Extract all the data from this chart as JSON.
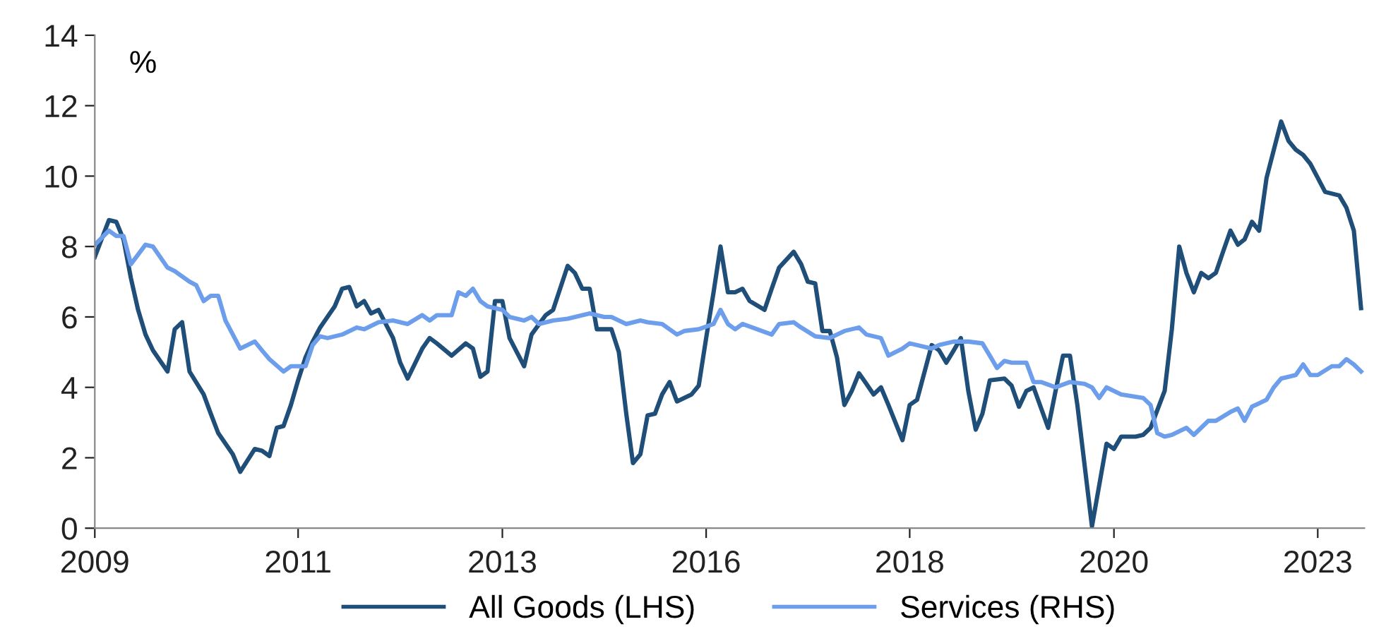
{
  "chart_data": {
    "type": "line",
    "ylabel": "%",
    "xlim": [
      "2009-01-01",
      "2023-07-15"
    ],
    "ylim": [
      0,
      14
    ],
    "yticks": [
      0,
      2,
      4,
      6,
      8,
      10,
      12,
      14
    ],
    "xticks": [
      {
        "value": "2009-01",
        "label": "2009"
      },
      {
        "value": "2011-05",
        "label": "2011"
      },
      {
        "value": "2013-09",
        "label": "2013"
      },
      {
        "value": "2016-01",
        "label": "2016"
      },
      {
        "value": "2018-05",
        "label": "2018"
      },
      {
        "value": "2020-09",
        "label": "2020"
      },
      {
        "value": "2023-01",
        "label": "2023"
      }
    ],
    "grid": false,
    "legend": "bottom",
    "marker": "none",
    "line_style": "solid",
    "series": [
      {
        "name": "All Goods (LHS)",
        "color": "#1f4e79",
        "x": [
          "2009-01",
          "2009-03",
          "2009-04",
          "2009-05",
          "2009-06",
          "2009-07",
          "2009-08",
          "2009-09",
          "2009-11",
          "2009-12",
          "2010-01",
          "2010-02",
          "2010-04",
          "2010-05",
          "2010-06",
          "2010-08",
          "2010-09",
          "2010-11",
          "2010-12",
          "2011-01",
          "2011-02",
          "2011-03",
          "2011-04",
          "2011-05",
          "2011-06",
          "2011-07",
          "2011-08",
          "2011-10",
          "2011-11",
          "2011-12",
          "2012-01",
          "2012-02",
          "2012-03",
          "2012-04",
          "2012-06",
          "2012-07",
          "2012-08",
          "2012-10",
          "2012-11",
          "2012-12",
          "2013-02",
          "2013-04",
          "2013-05",
          "2013-06",
          "2013-07",
          "2013-08",
          "2013-09",
          "2013-10",
          "2013-12",
          "2014-01",
          "2014-03",
          "2014-04",
          "2014-06",
          "2014-07",
          "2014-08",
          "2014-09",
          "2014-10",
          "2014-11",
          "2014-12",
          "2015-01",
          "2015-02",
          "2015-03",
          "2015-04",
          "2015-05",
          "2015-06",
          "2015-07",
          "2015-08",
          "2015-09",
          "2015-10",
          "2015-11",
          "2015-12",
          "2016-01",
          "2016-02",
          "2016-03",
          "2016-04",
          "2016-05",
          "2016-06",
          "2016-07",
          "2016-09",
          "2016-10",
          "2016-11",
          "2017-01",
          "2017-02",
          "2017-03",
          "2017-04",
          "2017-05",
          "2017-06",
          "2017-07",
          "2017-08",
          "2017-09",
          "2017-10",
          "2017-11",
          "2017-12",
          "2018-01",
          "2018-02",
          "2018-04",
          "2018-05",
          "2018-06",
          "2018-08",
          "2018-09",
          "2018-10",
          "2018-11",
          "2018-12",
          "2019-01",
          "2019-02",
          "2019-03",
          "2019-04",
          "2019-06",
          "2019-07",
          "2019-08",
          "2019-09",
          "2019-10",
          "2019-12",
          "2020-01",
          "2020-02",
          "2020-03",
          "2020-04",
          "2020-06",
          "2020-08",
          "2020-09",
          "2020-10",
          "2020-12",
          "2021-01",
          "2021-02",
          "2021-04",
          "2021-05",
          "2021-06",
          "2021-07",
          "2021-08",
          "2021-09",
          "2021-10",
          "2021-11",
          "2021-12",
          "2022-01",
          "2022-02",
          "2022-03",
          "2022-04",
          "2022-05",
          "2022-06",
          "2022-08",
          "2022-09",
          "2022-10",
          "2022-11",
          "2022-12",
          "2023-01",
          "2023-02",
          "2023-04",
          "2023-05",
          "2023-06",
          "2023-07"
        ],
        "values": [
          7.7,
          8.75,
          8.7,
          8.2,
          7.1,
          6.2,
          5.5,
          5.05,
          4.45,
          5.65,
          5.85,
          4.45,
          3.8,
          3.25,
          2.7,
          2.1,
          1.6,
          2.25,
          2.2,
          2.05,
          2.85,
          2.9,
          3.5,
          4.2,
          4.85,
          5.3,
          5.7,
          6.3,
          6.8,
          6.85,
          6.3,
          6.45,
          6.1,
          6.2,
          5.4,
          4.7,
          4.25,
          5.1,
          5.4,
          5.25,
          4.9,
          5.25,
          5.1,
          4.3,
          4.45,
          6.45,
          6.45,
          5.4,
          4.6,
          5.5,
          6.05,
          6.2,
          7.45,
          7.25,
          6.8,
          6.8,
          5.65,
          5.65,
          5.65,
          5.0,
          3.25,
          1.85,
          2.1,
          3.2,
          3.25,
          3.8,
          4.15,
          3.6,
          3.7,
          3.8,
          4.05,
          5.4,
          6.7,
          8.0,
          6.7,
          6.7,
          6.8,
          6.45,
          6.2,
          6.8,
          7.4,
          7.85,
          7.5,
          7.0,
          6.95,
          5.6,
          5.6,
          4.85,
          3.5,
          3.9,
          4.4,
          4.1,
          3.8,
          4.0,
          3.5,
          2.5,
          3.5,
          3.65,
          5.2,
          5.05,
          4.7,
          5.05,
          5.4,
          3.9,
          2.8,
          3.25,
          4.2,
          4.25,
          4.05,
          3.45,
          3.9,
          4.0,
          2.85,
          3.9,
          4.9,
          4.9,
          3.5,
          0.05,
          2.4,
          2.25,
          2.6,
          2.6,
          2.65,
          2.85,
          3.9,
          5.65,
          8.0,
          7.25,
          6.7,
          7.25,
          7.1,
          7.25,
          7.85,
          8.45,
          8.05,
          8.2,
          8.7,
          8.45,
          9.95,
          11.55,
          11.0,
          10.75,
          10.6,
          10.35,
          9.95,
          9.55,
          9.45,
          9.1,
          8.45,
          6.25
        ]
      },
      {
        "name": "Services (RHS)",
        "color": "#6d9eeb",
        "x": [
          "2009-01",
          "2009-03",
          "2009-04",
          "2009-05",
          "2009-06",
          "2009-08",
          "2009-09",
          "2009-11",
          "2009-12",
          "2010-02",
          "2010-03",
          "2010-04",
          "2010-05",
          "2010-06",
          "2010-07",
          "2010-08",
          "2010-09",
          "2010-11",
          "2010-12",
          "2011-01",
          "2011-03",
          "2011-04",
          "2011-06",
          "2011-07",
          "2011-08",
          "2011-09",
          "2011-11",
          "2012-01",
          "2012-02",
          "2012-04",
          "2012-06",
          "2012-08",
          "2012-10",
          "2012-11",
          "2012-12",
          "2013-02",
          "2013-03",
          "2013-04",
          "2013-05",
          "2013-06",
          "2013-07",
          "2013-09",
          "2013-10",
          "2013-12",
          "2014-01",
          "2014-02",
          "2014-04",
          "2014-06",
          "2014-09",
          "2014-11",
          "2014-12",
          "2015-02",
          "2015-04",
          "2015-05",
          "2015-07",
          "2015-09",
          "2015-10",
          "2015-12",
          "2016-02",
          "2016-03",
          "2016-04",
          "2016-05",
          "2016-06",
          "2016-08",
          "2016-10",
          "2016-11",
          "2017-01",
          "2017-02",
          "2017-04",
          "2017-06",
          "2017-08",
          "2017-10",
          "2017-11",
          "2018-01",
          "2018-02",
          "2018-04",
          "2018-05",
          "2018-08",
          "2018-09",
          "2018-11",
          "2019-01",
          "2019-03",
          "2019-04",
          "2019-05",
          "2019-06",
          "2019-07",
          "2019-09",
          "2019-10",
          "2019-11",
          "2020-01",
          "2020-03",
          "2020-05",
          "2020-06",
          "2020-07",
          "2020-08",
          "2020-10",
          "2021-01",
          "2021-02",
          "2021-03",
          "2021-04",
          "2021-05",
          "2021-07",
          "2021-08",
          "2021-10",
          "2021-11",
          "2022-01",
          "2022-02",
          "2022-03",
          "2022-04",
          "2022-06",
          "2022-07",
          "2022-08",
          "2022-10",
          "2022-11",
          "2022-12",
          "2023-01",
          "2023-03",
          "2023-04",
          "2023-05",
          "2023-06",
          "2023-07"
        ],
        "values": [
          8.05,
          8.45,
          8.3,
          8.3,
          7.5,
          8.05,
          8.0,
          7.4,
          7.3,
          7.0,
          6.9,
          6.45,
          6.6,
          6.6,
          5.9,
          5.5,
          5.1,
          5.3,
          5.05,
          4.8,
          4.45,
          4.6,
          4.6,
          5.2,
          5.45,
          5.4,
          5.5,
          5.7,
          5.65,
          5.85,
          5.9,
          5.8,
          6.05,
          5.9,
          6.05,
          6.05,
          6.7,
          6.6,
          6.8,
          6.45,
          6.3,
          6.2,
          6.0,
          5.9,
          6.0,
          5.8,
          5.9,
          5.95,
          6.1,
          6.0,
          6.0,
          5.8,
          5.9,
          5.85,
          5.8,
          5.5,
          5.6,
          5.65,
          5.8,
          6.2,
          5.8,
          5.65,
          5.8,
          5.65,
          5.5,
          5.8,
          5.85,
          5.7,
          5.45,
          5.4,
          5.6,
          5.7,
          5.5,
          5.4,
          4.9,
          5.1,
          5.25,
          5.1,
          5.2,
          5.3,
          5.3,
          5.25,
          4.9,
          4.55,
          4.75,
          4.7,
          4.7,
          4.15,
          4.15,
          4.0,
          4.15,
          4.1,
          4.0,
          3.7,
          4.0,
          3.8,
          3.7,
          3.5,
          2.7,
          2.6,
          2.65,
          2.85,
          2.65,
          3.05,
          3.05,
          3.3,
          3.4,
          3.05,
          3.45,
          3.65,
          4.0,
          4.25,
          4.35,
          4.65,
          4.35,
          4.35,
          4.6,
          4.6,
          4.8,
          4.65,
          4.45
        ]
      }
    ]
  }
}
